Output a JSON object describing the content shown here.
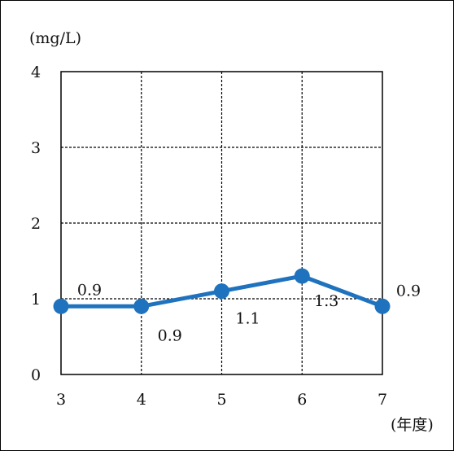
{
  "chart_data": {
    "type": "line",
    "ylabel": "(mg/L)",
    "xlabel": "(年度)",
    "x": [
      3,
      4,
      5,
      6,
      7
    ],
    "xticks": [
      "3",
      "4",
      "5",
      "6",
      "7"
    ],
    "yticks": [
      "0",
      "1",
      "2",
      "3",
      "4"
    ],
    "ylim": [
      0,
      4
    ],
    "xlim": [
      3,
      7
    ],
    "series": [
      {
        "values": [
          0.9,
          0.9,
          1.1,
          1.3,
          0.9
        ],
        "labels": [
          "0.9",
          "0.9",
          "1.1",
          "1.3",
          "0.9"
        ]
      }
    ],
    "grid": true,
    "colors": {
      "line": "#1f73be",
      "grid": "#000000"
    }
  }
}
